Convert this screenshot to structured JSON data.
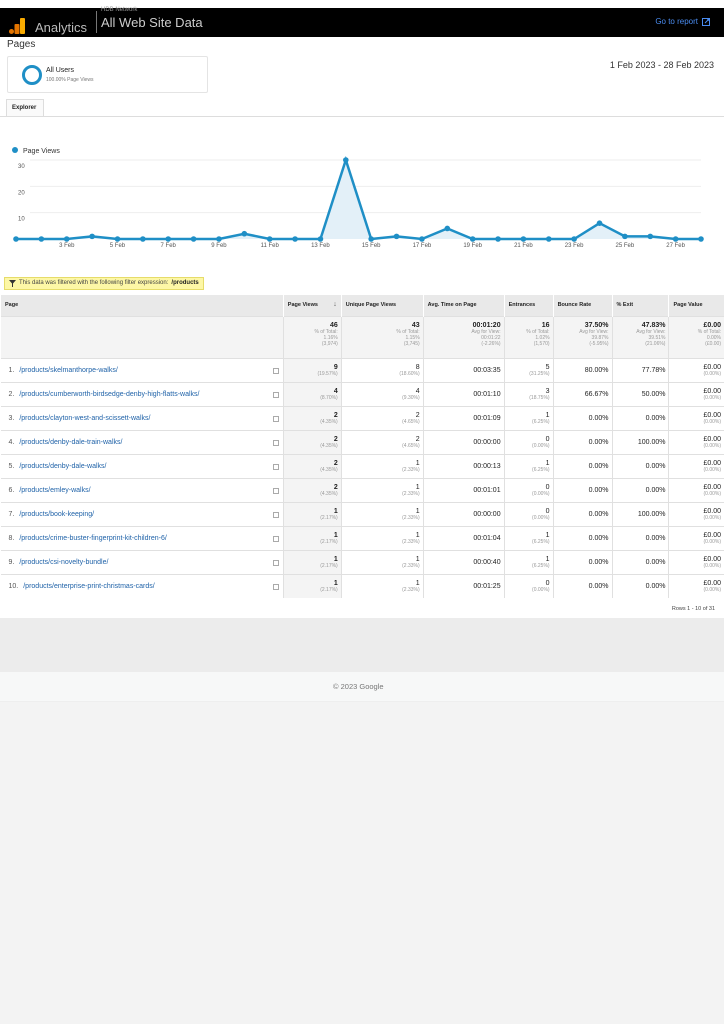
{
  "header": {
    "brand": "Analytics",
    "property": "HDB Network",
    "view": "All Web Site Data",
    "goto": "Go to report"
  },
  "page_title": "Pages",
  "segment": {
    "name": "All Users",
    "detail": "100.00% Page Views"
  },
  "date_range": "1 Feb 2023 - 28 Feb 2023",
  "tab": "Explorer",
  "colors": {
    "accent": "#1f8fc6",
    "link": "#1f62a8",
    "header": "#000000"
  },
  "chart_data": {
    "type": "line",
    "legend": "Page Views",
    "x": [
      1,
      2,
      3,
      4,
      5,
      6,
      7,
      8,
      9,
      10,
      11,
      12,
      13,
      14,
      15,
      16,
      17,
      18,
      19,
      20,
      21,
      22,
      23,
      24,
      25,
      26,
      27,
      28
    ],
    "values": [
      0,
      0,
      0,
      1,
      0,
      0,
      0,
      0,
      0,
      2,
      0,
      0,
      0,
      30,
      0,
      1,
      0,
      4,
      0,
      0,
      0,
      0,
      0,
      6,
      1,
      1,
      0,
      0
    ],
    "xticks": [
      "3 Feb",
      "5 Feb",
      "7 Feb",
      "9 Feb",
      "11 Feb",
      "13 Feb",
      "15 Feb",
      "17 Feb",
      "19 Feb",
      "21 Feb",
      "23 Feb",
      "25 Feb",
      "27 Feb"
    ],
    "yticks": [
      "10",
      "20",
      "30"
    ],
    "ylim": [
      0,
      30
    ],
    "grid": true,
    "legend_position": "top-left"
  },
  "filter": {
    "text": "This data was filtered with the following filter expression:",
    "expr": "/products"
  },
  "table": {
    "headers": [
      "Page",
      "Page Views",
      "Unique Page Views",
      "Avg. Time on Page",
      "Entrances",
      "Bounce Rate",
      "% Exit",
      "Page Value"
    ],
    "totals": [
      {
        "v": "46",
        "l1": "% of Total:",
        "l2": "1.16%",
        "l3": "(3,974)"
      },
      {
        "v": "43",
        "l1": "% of Total:",
        "l2": "1.15%",
        "l3": "(3,745)"
      },
      {
        "v": "00:01:20",
        "l1": "Avg for View:",
        "l2": "00:01:22",
        "l3": "(-2.26%)"
      },
      {
        "v": "16",
        "l1": "% of Total:",
        "l2": "1.02%",
        "l3": "(1,570)"
      },
      {
        "v": "37.50%",
        "l1": "Avg for View:",
        "l2": "39.87%",
        "l3": "(-5.95%)"
      },
      {
        "v": "47.83%",
        "l1": "Avg for View:",
        "l2": "39.51%",
        "l3": "(21.06%)"
      },
      {
        "v": "£0.00",
        "l1": "% of Total:",
        "l2": "0.00%",
        "l3": "(£0.00)"
      }
    ],
    "rows": [
      {
        "n": "1.",
        "page": "/products/skelmanthorpe-walks/",
        "pv": "9",
        "pvp": "(19.57%)",
        "upv": "8",
        "upvp": "(18.60%)",
        "avg": "00:03:35",
        "ent": "5",
        "entp": "(31.25%)",
        "br": "80.00%",
        "exit": "77.78%",
        "val": "£0.00",
        "valp": "(0.00%)"
      },
      {
        "n": "2.",
        "page": "/products/cumberworth-birdsedge-denby-high-flatts-walks/",
        "pv": "4",
        "pvp": "(8.70%)",
        "upv": "4",
        "upvp": "(9.30%)",
        "avg": "00:01:10",
        "ent": "3",
        "entp": "(18.75%)",
        "br": "66.67%",
        "exit": "50.00%",
        "val": "£0.00",
        "valp": "(0.00%)"
      },
      {
        "n": "3.",
        "page": "/products/clayton-west-and-scissett-walks/",
        "pv": "2",
        "pvp": "(4.35%)",
        "upv": "2",
        "upvp": "(4.65%)",
        "avg": "00:01:09",
        "ent": "1",
        "entp": "(6.25%)",
        "br": "0.00%",
        "exit": "0.00%",
        "val": "£0.00",
        "valp": "(0.00%)"
      },
      {
        "n": "4.",
        "page": "/products/denby-dale-train-walks/",
        "pv": "2",
        "pvp": "(4.35%)",
        "upv": "2",
        "upvp": "(4.65%)",
        "avg": "00:00:00",
        "ent": "0",
        "entp": "(0.00%)",
        "br": "0.00%",
        "exit": "100.00%",
        "val": "£0.00",
        "valp": "(0.00%)"
      },
      {
        "n": "5.",
        "page": "/products/denby-dale-walks/",
        "pv": "2",
        "pvp": "(4.35%)",
        "upv": "1",
        "upvp": "(2.33%)",
        "avg": "00:00:13",
        "ent": "1",
        "entp": "(6.25%)",
        "br": "0.00%",
        "exit": "0.00%",
        "val": "£0.00",
        "valp": "(0.00%)"
      },
      {
        "n": "6.",
        "page": "/products/emley-walks/",
        "pv": "2",
        "pvp": "(4.35%)",
        "upv": "1",
        "upvp": "(2.33%)",
        "avg": "00:01:01",
        "ent": "0",
        "entp": "(0.00%)",
        "br": "0.00%",
        "exit": "0.00%",
        "val": "£0.00",
        "valp": "(0.00%)"
      },
      {
        "n": "7.",
        "page": "/products/book-keeping/",
        "pv": "1",
        "pvp": "(2.17%)",
        "upv": "1",
        "upvp": "(2.33%)",
        "avg": "00:00:00",
        "ent": "0",
        "entp": "(0.00%)",
        "br": "0.00%",
        "exit": "100.00%",
        "val": "£0.00",
        "valp": "(0.00%)"
      },
      {
        "n": "8.",
        "page": "/products/crime-buster-fingerprint-kit-children-6/",
        "pv": "1",
        "pvp": "(2.17%)",
        "upv": "1",
        "upvp": "(2.33%)",
        "avg": "00:01:04",
        "ent": "1",
        "entp": "(6.25%)",
        "br": "0.00%",
        "exit": "0.00%",
        "val": "£0.00",
        "valp": "(0.00%)"
      },
      {
        "n": "9.",
        "page": "/products/csi-novelty-bundle/",
        "pv": "1",
        "pvp": "(2.17%)",
        "upv": "1",
        "upvp": "(2.33%)",
        "avg": "00:00:40",
        "ent": "1",
        "entp": "(6.25%)",
        "br": "0.00%",
        "exit": "0.00%",
        "val": "£0.00",
        "valp": "(0.00%)"
      },
      {
        "n": "10.",
        "page": "/products/enterprise-print-christmas-cards/",
        "pv": "1",
        "pvp": "(2.17%)",
        "upv": "1",
        "upvp": "(2.33%)",
        "avg": "00:01:25",
        "ent": "0",
        "entp": "(0.00%)",
        "br": "0.00%",
        "exit": "0.00%",
        "val": "£0.00",
        "valp": "(0.00%)"
      }
    ],
    "pagination": "Rows 1 - 10 of 31"
  },
  "footer": "© 2023 Google"
}
